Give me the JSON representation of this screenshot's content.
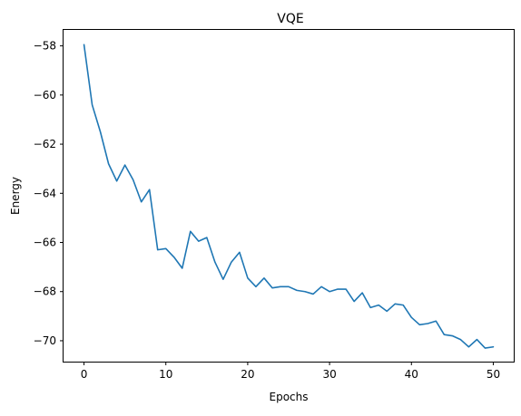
{
  "chart_data": {
    "type": "line",
    "title": "VQE",
    "xlabel": "Epochs",
    "ylabel": "Energy",
    "xlim": [
      -2.5,
      52.5
    ],
    "ylim": [
      -70.85,
      -57.35
    ],
    "xticks": [
      0,
      10,
      20,
      30,
      40,
      50
    ],
    "yticks": [
      -70,
      -68,
      -66,
      -64,
      -62,
      -60,
      -58
    ],
    "x_tick_labels": [
      "0",
      "10",
      "20",
      "30",
      "40",
      "50"
    ],
    "y_tick_labels": [
      "−70",
      "−68",
      "−66",
      "−64",
      "−62",
      "−60",
      "−58"
    ],
    "grid": false,
    "legend": "none",
    "series": [
      {
        "color": "#1f77b4",
        "x": [
          0,
          1,
          2,
          3,
          4,
          5,
          6,
          7,
          8,
          9,
          10,
          11,
          12,
          13,
          14,
          15,
          16,
          17,
          18,
          19,
          20,
          21,
          22,
          23,
          24,
          25,
          26,
          27,
          28,
          29,
          30,
          31,
          32,
          33,
          34,
          35,
          36,
          37,
          38,
          39,
          40,
          41,
          42,
          43,
          44,
          45,
          46,
          47,
          48,
          49,
          50
        ],
        "values": [
          -57.95,
          -60.4,
          -61.5,
          -62.8,
          -63.5,
          -62.85,
          -63.45,
          -64.35,
          -63.85,
          -66.3,
          -66.25,
          -66.6,
          -67.05,
          -65.55,
          -65.95,
          -65.8,
          -66.8,
          -67.5,
          -66.8,
          -66.4,
          -67.45,
          -67.8,
          -67.45,
          -67.85,
          -67.8,
          -67.8,
          -67.95,
          -68.0,
          -68.1,
          -67.8,
          -68.0,
          -67.9,
          -67.9,
          -68.4,
          -68.05,
          -68.65,
          -68.55,
          -68.8,
          -68.5,
          -68.55,
          -69.05,
          -69.35,
          -69.3,
          -69.2,
          -69.75,
          -69.8,
          -69.95,
          -70.25,
          -69.95,
          -70.3,
          -70.25
        ]
      }
    ]
  }
}
